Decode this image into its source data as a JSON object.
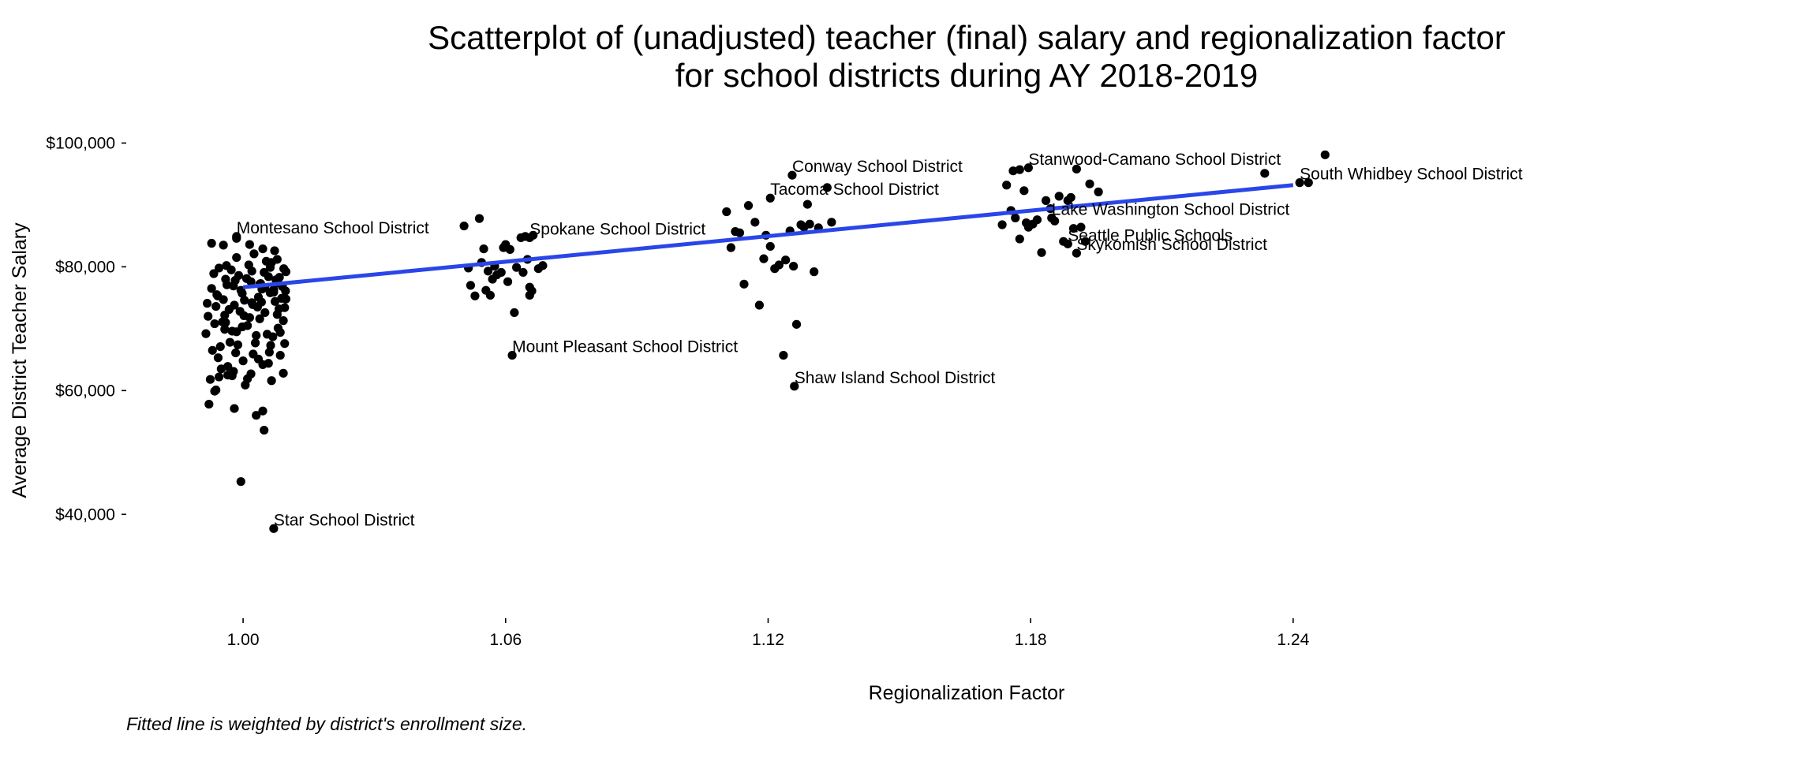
{
  "chart_data": {
    "type": "scatter",
    "title_lines": [
      "Scatterplot of (unadjusted) teacher (final) salary and regionalization factor",
      "for school districts during AY 2018-2019"
    ],
    "xlabel": "Regionalization Factor",
    "ylabel": "Average District Teacher Salary",
    "caption": "Fitted line is weighted by district's enrollment size.",
    "xlim": [
      0.976,
      1.288
    ],
    "ylim": [
      25000,
      104000
    ],
    "x_ticks": [
      {
        "value": 1.0,
        "label": "1.00"
      },
      {
        "value": 1.06,
        "label": "1.06"
      },
      {
        "value": 1.12,
        "label": "1.12"
      },
      {
        "value": 1.18,
        "label": "1.18"
      },
      {
        "value": 1.24,
        "label": "1.24"
      }
    ],
    "y_ticks": [
      {
        "value": 40000,
        "label": "$40,000"
      },
      {
        "value": 60000,
        "label": "$60,000"
      },
      {
        "value": 80000,
        "label": "$80,000"
      },
      {
        "value": 100000,
        "label": "$100,000"
      }
    ],
    "grid": false,
    "point_color": "#000000",
    "line_color": "#2a46e8",
    "fit_line": {
      "x": [
        1.0,
        1.24
      ],
      "y": [
        76700,
        93200
      ]
    },
    "points": [
      [
        0.9915,
        69200
      ],
      [
        0.992,
        72000
      ],
      [
        0.993,
        66500
      ],
      [
        0.994,
        75500
      ],
      [
        0.995,
        63500
      ],
      [
        0.996,
        71000
      ],
      [
        0.997,
        67800
      ],
      [
        0.998,
        73800
      ],
      [
        0.999,
        78600
      ],
      [
        1.0,
        64800
      ],
      [
        1.001,
        70500
      ],
      [
        1.002,
        74200
      ],
      [
        1.003,
        68900
      ],
      [
        1.004,
        77300
      ],
      [
        1.005,
        72600
      ],
      [
        1.006,
        66200
      ],
      [
        1.007,
        75900
      ],
      [
        1.008,
        70100
      ],
      [
        1.009,
        76800
      ],
      [
        1.0095,
        73400
      ],
      [
        0.9925,
        61800
      ],
      [
        0.9945,
        79800
      ],
      [
        0.9965,
        62500
      ],
      [
        0.9985,
        81500
      ],
      [
        1.0005,
        60900
      ],
      [
        1.0025,
        82100
      ],
      [
        1.0045,
        64200
      ],
      [
        1.0065,
        80700
      ],
      [
        1.0085,
        65700
      ],
      [
        1.0098,
        79200
      ],
      [
        0.9935,
        70800
      ],
      [
        0.9955,
        74700
      ],
      [
        0.9975,
        69600
      ],
      [
        0.9995,
        76200
      ],
      [
        1.0015,
        71800
      ],
      [
        1.0035,
        75100
      ],
      [
        1.0055,
        69100
      ],
      [
        1.0075,
        77900
      ],
      [
        1.0092,
        71300
      ],
      [
        0.9928,
        76500
      ],
      [
        0.9948,
        67100
      ],
      [
        0.9968,
        73100
      ],
      [
        0.9988,
        67400
      ],
      [
        1.0008,
        78100
      ],
      [
        1.0028,
        67700
      ],
      [
        1.0048,
        79100
      ],
      [
        1.0068,
        68700
      ],
      [
        1.0088,
        74900
      ],
      [
        0.9938,
        73600
      ],
      [
        0.9958,
        69900
      ],
      [
        0.9978,
        76900
      ],
      [
        0.9998,
        70300
      ],
      [
        1.0018,
        77600
      ],
      [
        1.0038,
        71600
      ],
      [
        1.0058,
        78400
      ],
      [
        1.0078,
        72300
      ],
      [
        1.0097,
        76100
      ],
      [
        0.9933,
        78900
      ],
      [
        0.9953,
        71100
      ],
      [
        0.9973,
        79500
      ],
      [
        0.9993,
        72800
      ],
      [
        1.0013,
        80300
      ],
      [
        1.0033,
        73500
      ],
      [
        1.0053,
        80900
      ],
      [
        1.0073,
        74400
      ],
      [
        1.0093,
        79700
      ],
      [
        0.9943,
        65300
      ],
      [
        0.9963,
        77100
      ],
      [
        0.9983,
        66100
      ],
      [
        1.0003,
        74600
      ],
      [
        1.0023,
        65900
      ],
      [
        1.0043,
        76400
      ],
      [
        1.0063,
        67300
      ],
      [
        1.0083,
        78300
      ],
      [
        0.9918,
        74100
      ],
      [
        0.9938,
        60100
      ],
      [
        0.9958,
        72200
      ],
      [
        0.9978,
        63100
      ],
      [
        0.9998,
        75700
      ],
      [
        1.0018,
        62700
      ],
      [
        1.0038,
        77200
      ],
      [
        1.0058,
        64400
      ],
      [
        1.0078,
        81200
      ],
      [
        1.0095,
        67600
      ],
      [
        0.9928,
        83800
      ],
      [
        0.9955,
        83500
      ],
      [
        0.9985,
        84600
      ],
      [
        1.0015,
        83600
      ],
      [
        1.0045,
        82900
      ],
      [
        1.0072,
        82600
      ],
      [
        0.9922,
        57800
      ],
      [
        0.9935,
        59900
      ],
      [
        0.9945,
        62200
      ],
      [
        0.9965,
        63900
      ],
      [
        0.9975,
        62400
      ],
      [
        0.998,
        57100
      ],
      [
        1.001,
        61900
      ],
      [
        1.003,
        56000
      ],
      [
        1.0035,
        65100
      ],
      [
        1.0045,
        56700
      ],
      [
        1.0048,
        53600
      ],
      [
        1.0065,
        61600
      ],
      [
        1.0085,
        69400
      ],
      [
        1.0092,
        62800
      ],
      [
        1.0098,
        74800
      ],
      [
        0.9985,
        69500
      ],
      [
        0.996,
        78000
      ],
      [
        1.002,
        79300
      ],
      [
        1.0062,
        79900
      ],
      [
        1.008,
        77400
      ],
      [
        0.9942,
        75300
      ],
      [
        0.9962,
        80200
      ],
      [
        0.9982,
        77800
      ],
      [
        1.0002,
        72100
      ],
      [
        1.0022,
        73900
      ],
      [
        1.0042,
        74300
      ],
      [
        1.0062,
        75800
      ],
      [
        1.0082,
        73200
      ],
      [
        1.005,
        76600
      ],
      [
        1.007,
        76300
      ],
      [
        0.9995,
        45300
      ],
      [
        1.0505,
        86600
      ],
      [
        1.0515,
        79800
      ],
      [
        1.052,
        77000
      ],
      [
        1.053,
        75300
      ],
      [
        1.054,
        87800
      ],
      [
        1.0545,
        80700
      ],
      [
        1.055,
        82900
      ],
      [
        1.0555,
        76200
      ],
      [
        1.056,
        79300
      ],
      [
        1.0565,
        75400
      ],
      [
        1.057,
        78000
      ],
      [
        1.0575,
        80100
      ],
      [
        1.058,
        78700
      ],
      [
        1.059,
        79100
      ],
      [
        1.06,
        83600
      ],
      [
        1.0605,
        77600
      ],
      [
        1.061,
        82800
      ],
      [
        1.062,
        72600
      ],
      [
        1.0625,
        79900
      ],
      [
        1.0635,
        84700
      ],
      [
        1.064,
        79100
      ],
      [
        1.0645,
        84900
      ],
      [
        1.065,
        81200
      ],
      [
        1.0655,
        76700
      ],
      [
        1.066,
        76100
      ],
      [
        1.0655,
        75400
      ],
      [
        1.0675,
        79700
      ],
      [
        1.0685,
        80200
      ],
      [
        1.0663,
        85100
      ],
      [
        1.0595,
        83100
      ],
      [
        1.1105,
        88900
      ],
      [
        1.1115,
        83100
      ],
      [
        1.1125,
        85700
      ],
      [
        1.1135,
        85500
      ],
      [
        1.1145,
        77200
      ],
      [
        1.1155,
        89900
      ],
      [
        1.117,
        87200
      ],
      [
        1.118,
        73800
      ],
      [
        1.1195,
        85100
      ],
      [
        1.119,
        81300
      ],
      [
        1.1205,
        83300
      ],
      [
        1.1215,
        79700
      ],
      [
        1.1225,
        80300
      ],
      [
        1.1235,
        65700
      ],
      [
        1.124,
        81100
      ],
      [
        1.125,
        85800
      ],
      [
        1.1258,
        80100
      ],
      [
        1.1265,
        70700
      ],
      [
        1.1275,
        86800
      ],
      [
        1.1282,
        86400
      ],
      [
        1.129,
        90100
      ],
      [
        1.1295,
        86900
      ],
      [
        1.1305,
        79200
      ],
      [
        1.1315,
        86300
      ],
      [
        1.1335,
        92800
      ],
      [
        1.1345,
        87200
      ],
      [
        1.1735,
        86800
      ],
      [
        1.1745,
        93200
      ],
      [
        1.1755,
        89100
      ],
      [
        1.1765,
        87900
      ],
      [
        1.1775,
        84500
      ],
      [
        1.1785,
        92300
      ],
      [
        1.179,
        87100
      ],
      [
        1.1795,
        86400
      ],
      [
        1.1805,
        86900
      ],
      [
        1.1815,
        87600
      ],
      [
        1.1825,
        82300
      ],
      [
        1.1835,
        90700
      ],
      [
        1.1845,
        89400
      ],
      [
        1.1855,
        87400
      ],
      [
        1.1865,
        91400
      ],
      [
        1.1875,
        84100
      ],
      [
        1.1885,
        90700
      ],
      [
        1.1892,
        91200
      ],
      [
        1.1898,
        86200
      ],
      [
        1.1905,
        95800
      ],
      [
        1.1915,
        86400
      ],
      [
        1.1925,
        84100
      ],
      [
        1.1935,
        93400
      ],
      [
        1.1955,
        92100
      ],
      [
        1.176,
        95500
      ],
      [
        1.1775,
        95700
      ],
      [
        1.2335,
        95100
      ],
      [
        1.2473,
        98100
      ],
      [
        1.2435,
        93600
      ]
    ],
    "labeled_points": [
      {
        "label": "Montesano School District",
        "x": 0.9985,
        "y": 84900
      },
      {
        "label": "Spokane School District",
        "x": 1.0655,
        "y": 84700
      },
      {
        "label": "Mount Pleasant School District",
        "x": 1.0615,
        "y": 65700
      },
      {
        "label": "Star School District",
        "x": 1.007,
        "y": 37700
      },
      {
        "label": "Conway School District",
        "x": 1.1255,
        "y": 94800
      },
      {
        "label": "Tacoma School District",
        "x": 1.1205,
        "y": 91100
      },
      {
        "label": "Shaw Island School District",
        "x": 1.126,
        "y": 60700
      },
      {
        "label": "Stanwood-Camano School District",
        "x": 1.1795,
        "y": 96000
      },
      {
        "label": "South Whidbey School District",
        "x": 1.2415,
        "y": 93600
      },
      {
        "label": "Lake Washington School District",
        "x": 1.1848,
        "y": 87900
      },
      {
        "label": "Seattle Public Schools",
        "x": 1.1885,
        "y": 83700
      },
      {
        "label": "Skykomish School District",
        "x": 1.1905,
        "y": 82200
      }
    ]
  }
}
